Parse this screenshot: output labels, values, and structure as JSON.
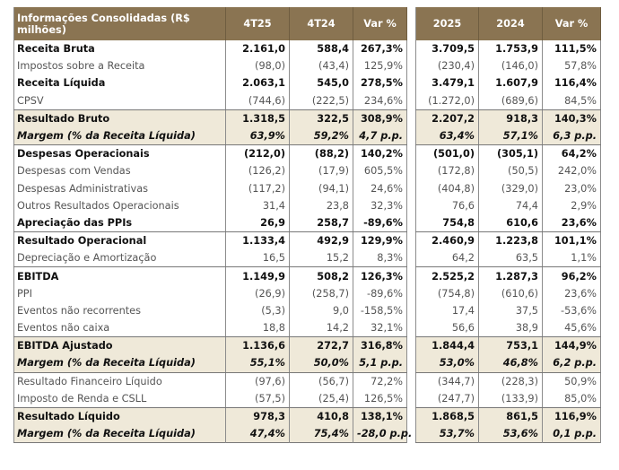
{
  "colors": {
    "header_bg": "#8a7452",
    "shaded_bg": "#efe9d9"
  },
  "headers": {
    "label": "Informações Consolidadas (R$ milhões)",
    "q1": "4T25",
    "q2": "4T24",
    "qvar": "Var %",
    "y1": "2025",
    "y2": "2024",
    "yvar": "Var %"
  },
  "rows": [
    {
      "label": "Receita Bruta",
      "style": "bold",
      "v": [
        "2.161,0",
        "588,4",
        "267,3%",
        "3.709,5",
        "1.753,9",
        "111,5%"
      ]
    },
    {
      "label": "Impostos sobre a Receita",
      "style": "normal",
      "v": [
        "(98,0)",
        "(43,4)",
        "125,9%",
        "(230,4)",
        "(146,0)",
        "57,8%"
      ]
    },
    {
      "label": "Receita Líquida",
      "style": "bold",
      "v": [
        "2.063,1",
        "545,0",
        "278,5%",
        "3.479,1",
        "1.607,9",
        "116,4%"
      ]
    },
    {
      "label": "CPSV",
      "style": "normal",
      "sep": true,
      "v": [
        "(744,6)",
        "(222,5)",
        "234,6%",
        "(1.272,0)",
        "(689,6)",
        "84,5%"
      ]
    },
    {
      "label": "Resultado Bruto",
      "style": "shaded-bold",
      "v": [
        "1.318,5",
        "322,5",
        "308,9%",
        "2.207,2",
        "918,3",
        "140,3%"
      ]
    },
    {
      "label": "Margem (% da Receita Líquida)",
      "style": "shaded-italic",
      "sep": true,
      "v": [
        "63,9%",
        "59,2%",
        "4,7 p.p.",
        "63,4%",
        "57,1%",
        "6,3 p.p."
      ]
    },
    {
      "label": "Despesas Operacionais",
      "style": "bold",
      "v": [
        "(212,0)",
        "(88,2)",
        "140,2%",
        "(501,0)",
        "(305,1)",
        "64,2%"
      ]
    },
    {
      "label": "Despesas com Vendas",
      "style": "normal",
      "v": [
        "(126,2)",
        "(17,9)",
        "605,5%",
        "(172,8)",
        "(50,5)",
        "242,0%"
      ]
    },
    {
      "label": "Despesas Administrativas",
      "style": "normal",
      "v": [
        "(117,2)",
        "(94,1)",
        "24,6%",
        "(404,8)",
        "(329,0)",
        "23,0%"
      ]
    },
    {
      "label": "Outros Resultados Operacionais",
      "style": "normal",
      "v": [
        "31,4",
        "23,8",
        "32,3%",
        "76,6",
        "74,4",
        "2,9%"
      ]
    },
    {
      "label": "Apreciação das PPIs",
      "style": "bold",
      "sep": true,
      "v": [
        "26,9",
        "258,7",
        "-89,6%",
        "754,8",
        "610,6",
        "23,6%"
      ]
    },
    {
      "label": "Resultado Operacional",
      "style": "bold",
      "v": [
        "1.133,4",
        "492,9",
        "129,9%",
        "2.460,9",
        "1.223,8",
        "101,1%"
      ]
    },
    {
      "label": "Depreciação e Amortização",
      "style": "normal",
      "sep": true,
      "v": [
        "16,5",
        "15,2",
        "8,3%",
        "64,2",
        "63,5",
        "1,1%"
      ]
    },
    {
      "label": "EBITDA",
      "style": "bold",
      "v": [
        "1.149,9",
        "508,2",
        "126,3%",
        "2.525,2",
        "1.287,3",
        "96,2%"
      ]
    },
    {
      "label": "PPI",
      "style": "normal",
      "v": [
        "(26,9)",
        "(258,7)",
        "-89,6%",
        "(754,8)",
        "(610,6)",
        "23,6%"
      ]
    },
    {
      "label": "Eventos não recorrentes",
      "style": "normal",
      "v": [
        "(5,3)",
        "9,0",
        "-158,5%",
        "17,4",
        "37,5",
        "-53,6%"
      ]
    },
    {
      "label": "Eventos não caixa",
      "style": "normal",
      "sep": true,
      "v": [
        "18,8",
        "14,2",
        "32,1%",
        "56,6",
        "38,9",
        "45,6%"
      ]
    },
    {
      "label": "EBITDA Ajustado",
      "style": "shaded-bold",
      "v": [
        "1.136,6",
        "272,7",
        "316,8%",
        "1.844,4",
        "753,1",
        "144,9%"
      ]
    },
    {
      "label": "Margem (% da Receita Líquida)",
      "style": "shaded-italic",
      "sep": true,
      "v": [
        "55,1%",
        "50,0%",
        "5,1 p.p.",
        "53,0%",
        "46,8%",
        "6,2 p.p."
      ]
    },
    {
      "label": "Resultado Financeiro Líquido",
      "style": "normal",
      "v": [
        "(97,6)",
        "(56,7)",
        "72,2%",
        "(344,7)",
        "(228,3)",
        "50,9%"
      ]
    },
    {
      "label": "Imposto de Renda e CSLL",
      "style": "normal",
      "sep": true,
      "v": [
        "(57,5)",
        "(25,4)",
        "126,5%",
        "(247,7)",
        "(133,9)",
        "85,0%"
      ]
    },
    {
      "label": "Resultado Líquido",
      "style": "shaded-bold",
      "v": [
        "978,3",
        "410,8",
        "138,1%",
        "1.868,5",
        "861,5",
        "116,9%"
      ]
    },
    {
      "label": "Margem (% da Receita Líquida)",
      "style": "shaded-italic",
      "v": [
        "47,4%",
        "75,4%",
        "-28,0 p.p.",
        "53,7%",
        "53,6%",
        "0,1 p.p."
      ]
    }
  ]
}
